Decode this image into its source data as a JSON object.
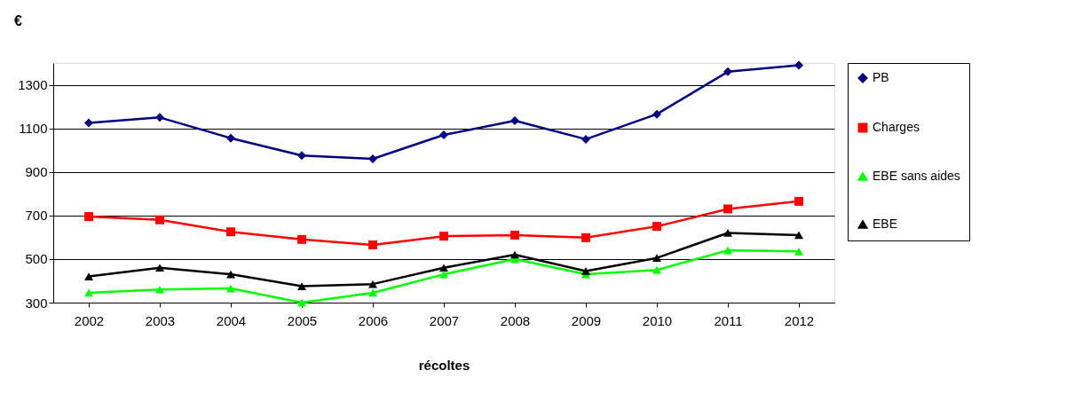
{
  "chart_data": {
    "type": "line",
    "ylabel": "€",
    "xlabel": "récoltes",
    "categories": [
      "2002",
      "2003",
      "2004",
      "2005",
      "2006",
      "2007",
      "2008",
      "2009",
      "2010",
      "2011",
      "2012"
    ],
    "series": [
      {
        "name": "PB",
        "color": "#000080",
        "marker": "diamond",
        "values": [
          1125,
          1150,
          1055,
          975,
          960,
          1070,
          1135,
          1050,
          1165,
          1360,
          1390
        ]
      },
      {
        "name": "Charges",
        "color": "#ff0000",
        "marker": "square",
        "values": [
          695,
          680,
          625,
          590,
          565,
          605,
          610,
          598,
          650,
          730,
          765
        ]
      },
      {
        "name": "EBE sans aides",
        "color": "#00ff00",
        "marker": "triangle",
        "values": [
          345,
          360,
          365,
          300,
          345,
          430,
          500,
          430,
          450,
          540,
          535
        ]
      },
      {
        "name": "EBE",
        "color": "#000000",
        "marker": "triangle",
        "values": [
          420,
          460,
          430,
          375,
          385,
          460,
          520,
          445,
          505,
          620,
          610
        ]
      }
    ],
    "ylim": [
      300,
      1400
    ],
    "yticks": [
      300,
      500,
      700,
      900,
      1100,
      1300
    ],
    "grid": "y",
    "legend": "right"
  }
}
